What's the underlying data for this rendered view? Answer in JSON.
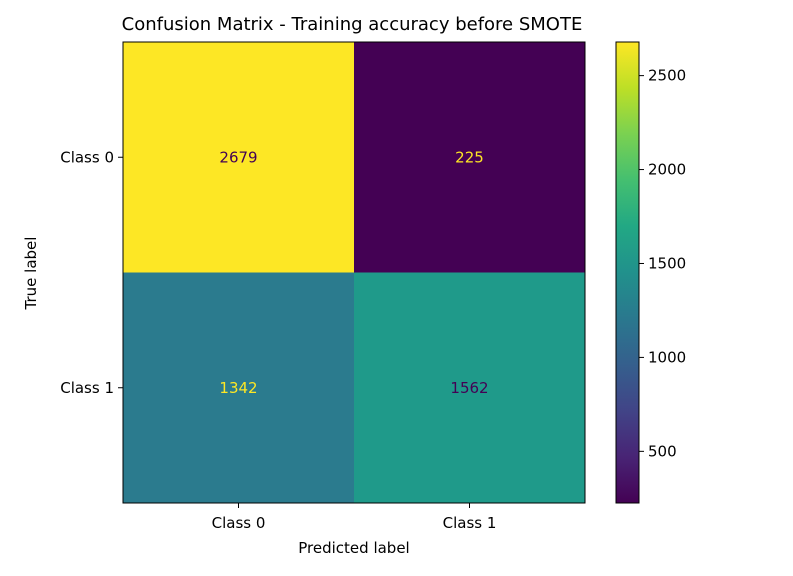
{
  "chart_data": {
    "type": "heatmap",
    "title": "Confusion Matrix - Training  accuracy before SMOTE",
    "xlabel": "Predicted label",
    "ylabel": "True label",
    "x_categories": [
      "Class 0",
      "Class 1"
    ],
    "y_categories": [
      "Class 0",
      "Class 1"
    ],
    "matrix": [
      [
        2679,
        225
      ],
      [
        1342,
        1562
      ]
    ],
    "colormap": "viridis",
    "colorbar": {
      "range": [
        225,
        2679
      ],
      "ticks": [
        500,
        1000,
        1500,
        2000,
        2500
      ]
    },
    "colors": {
      "cell_0_0": "#fde725",
      "cell_0_1": "#440154",
      "cell_1_0": "#2b7b8e",
      "cell_1_1": "#1f9a8a",
      "text_on_dark": "#fde725",
      "text_on_light": "#440154"
    },
    "grid": false
  }
}
